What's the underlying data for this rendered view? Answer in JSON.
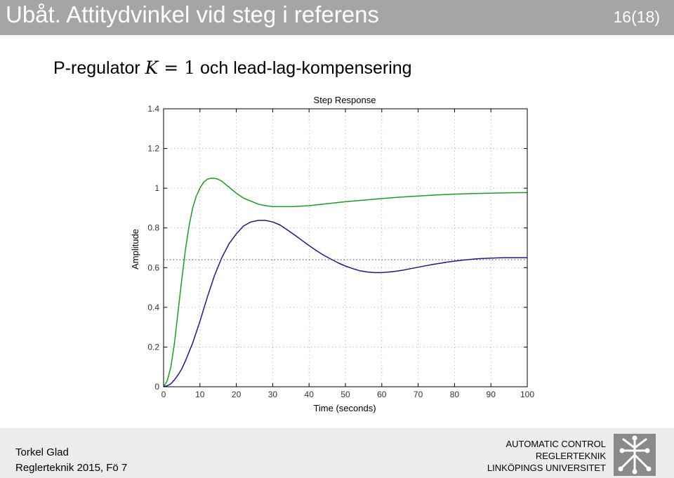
{
  "header": {
    "title": "Ubåt. Attitydvinkel vid steg i referens",
    "slide_number": "16(18)",
    "bg_color": "#a5a5a5"
  },
  "subtitle": {
    "text_before": "P-regulator ",
    "math_var": "K",
    "math_rest": " = 1",
    "text_after": " och lead-lag-kompensering"
  },
  "chart_data": {
    "type": "line",
    "title": "Step Response",
    "xlabel": "Time (seconds)",
    "ylabel": "Amplitude",
    "xlim": [
      0,
      100
    ],
    "ylim": [
      0,
      1.4
    ],
    "xticks": [
      "0",
      "10",
      "20",
      "30",
      "40",
      "50",
      "60",
      "70",
      "80",
      "90",
      "100"
    ],
    "yticks": [
      "0",
      "0.2",
      "0.4",
      "0.6",
      "0.8",
      "1",
      "1.2",
      "1.4"
    ],
    "grid": true,
    "reference_line": 0.64,
    "series": [
      {
        "color": "#1f9b1f",
        "x": [
          0,
          1,
          2,
          3,
          4,
          5,
          6,
          7,
          8,
          9,
          10,
          11,
          12,
          13,
          14,
          15,
          16,
          17,
          18,
          19,
          20,
          22,
          24,
          26,
          28,
          30,
          32,
          34,
          36,
          38,
          40,
          42,
          44,
          46,
          48,
          50,
          55,
          60,
          65,
          70,
          75,
          80,
          85,
          90,
          95,
          100
        ],
        "y": [
          0,
          0.03,
          0.1,
          0.22,
          0.38,
          0.54,
          0.69,
          0.81,
          0.9,
          0.96,
          1.0,
          1.03,
          1.045,
          1.05,
          1.05,
          1.045,
          1.035,
          1.02,
          1.005,
          0.99,
          0.975,
          0.95,
          0.935,
          0.92,
          0.912,
          0.908,
          0.907,
          0.907,
          0.908,
          0.91,
          0.912,
          0.916,
          0.92,
          0.924,
          0.928,
          0.932,
          0.94,
          0.948,
          0.955,
          0.961,
          0.966,
          0.97,
          0.973,
          0.975,
          0.977,
          0.978
        ]
      },
      {
        "color": "#1a1a8e",
        "x": [
          0,
          1,
          2,
          3,
          4,
          5,
          6,
          8,
          10,
          12,
          14,
          16,
          18,
          20,
          22,
          24,
          26,
          28,
          30,
          32,
          34,
          36,
          38,
          40,
          42,
          44,
          46,
          48,
          50,
          52,
          54,
          56,
          58,
          60,
          62,
          64,
          66,
          68,
          70,
          72,
          74,
          76,
          78,
          80,
          82,
          84,
          86,
          88,
          90,
          92,
          94,
          96,
          98,
          100
        ],
        "y": [
          0,
          0.005,
          0.015,
          0.035,
          0.06,
          0.09,
          0.13,
          0.22,
          0.33,
          0.45,
          0.56,
          0.65,
          0.72,
          0.77,
          0.81,
          0.83,
          0.838,
          0.838,
          0.83,
          0.815,
          0.79,
          0.765,
          0.738,
          0.711,
          0.686,
          0.663,
          0.643,
          0.624,
          0.608,
          0.595,
          0.584,
          0.578,
          0.575,
          0.575,
          0.578,
          0.582,
          0.588,
          0.595,
          0.602,
          0.609,
          0.616,
          0.622,
          0.628,
          0.633,
          0.637,
          0.641,
          0.644,
          0.646,
          0.648,
          0.649,
          0.65,
          0.65,
          0.65,
          0.65
        ]
      }
    ]
  },
  "footer": {
    "author": "Torkel Glad",
    "course": "Reglerteknik 2015, Fö 7",
    "org_line1": "AUTOMATIC CONTROL",
    "org_line2": "REGLERTEKNIK",
    "org_line3": "LINKÖPINGS UNIVERSITET",
    "logo_icon": "liu-logo-icon"
  }
}
